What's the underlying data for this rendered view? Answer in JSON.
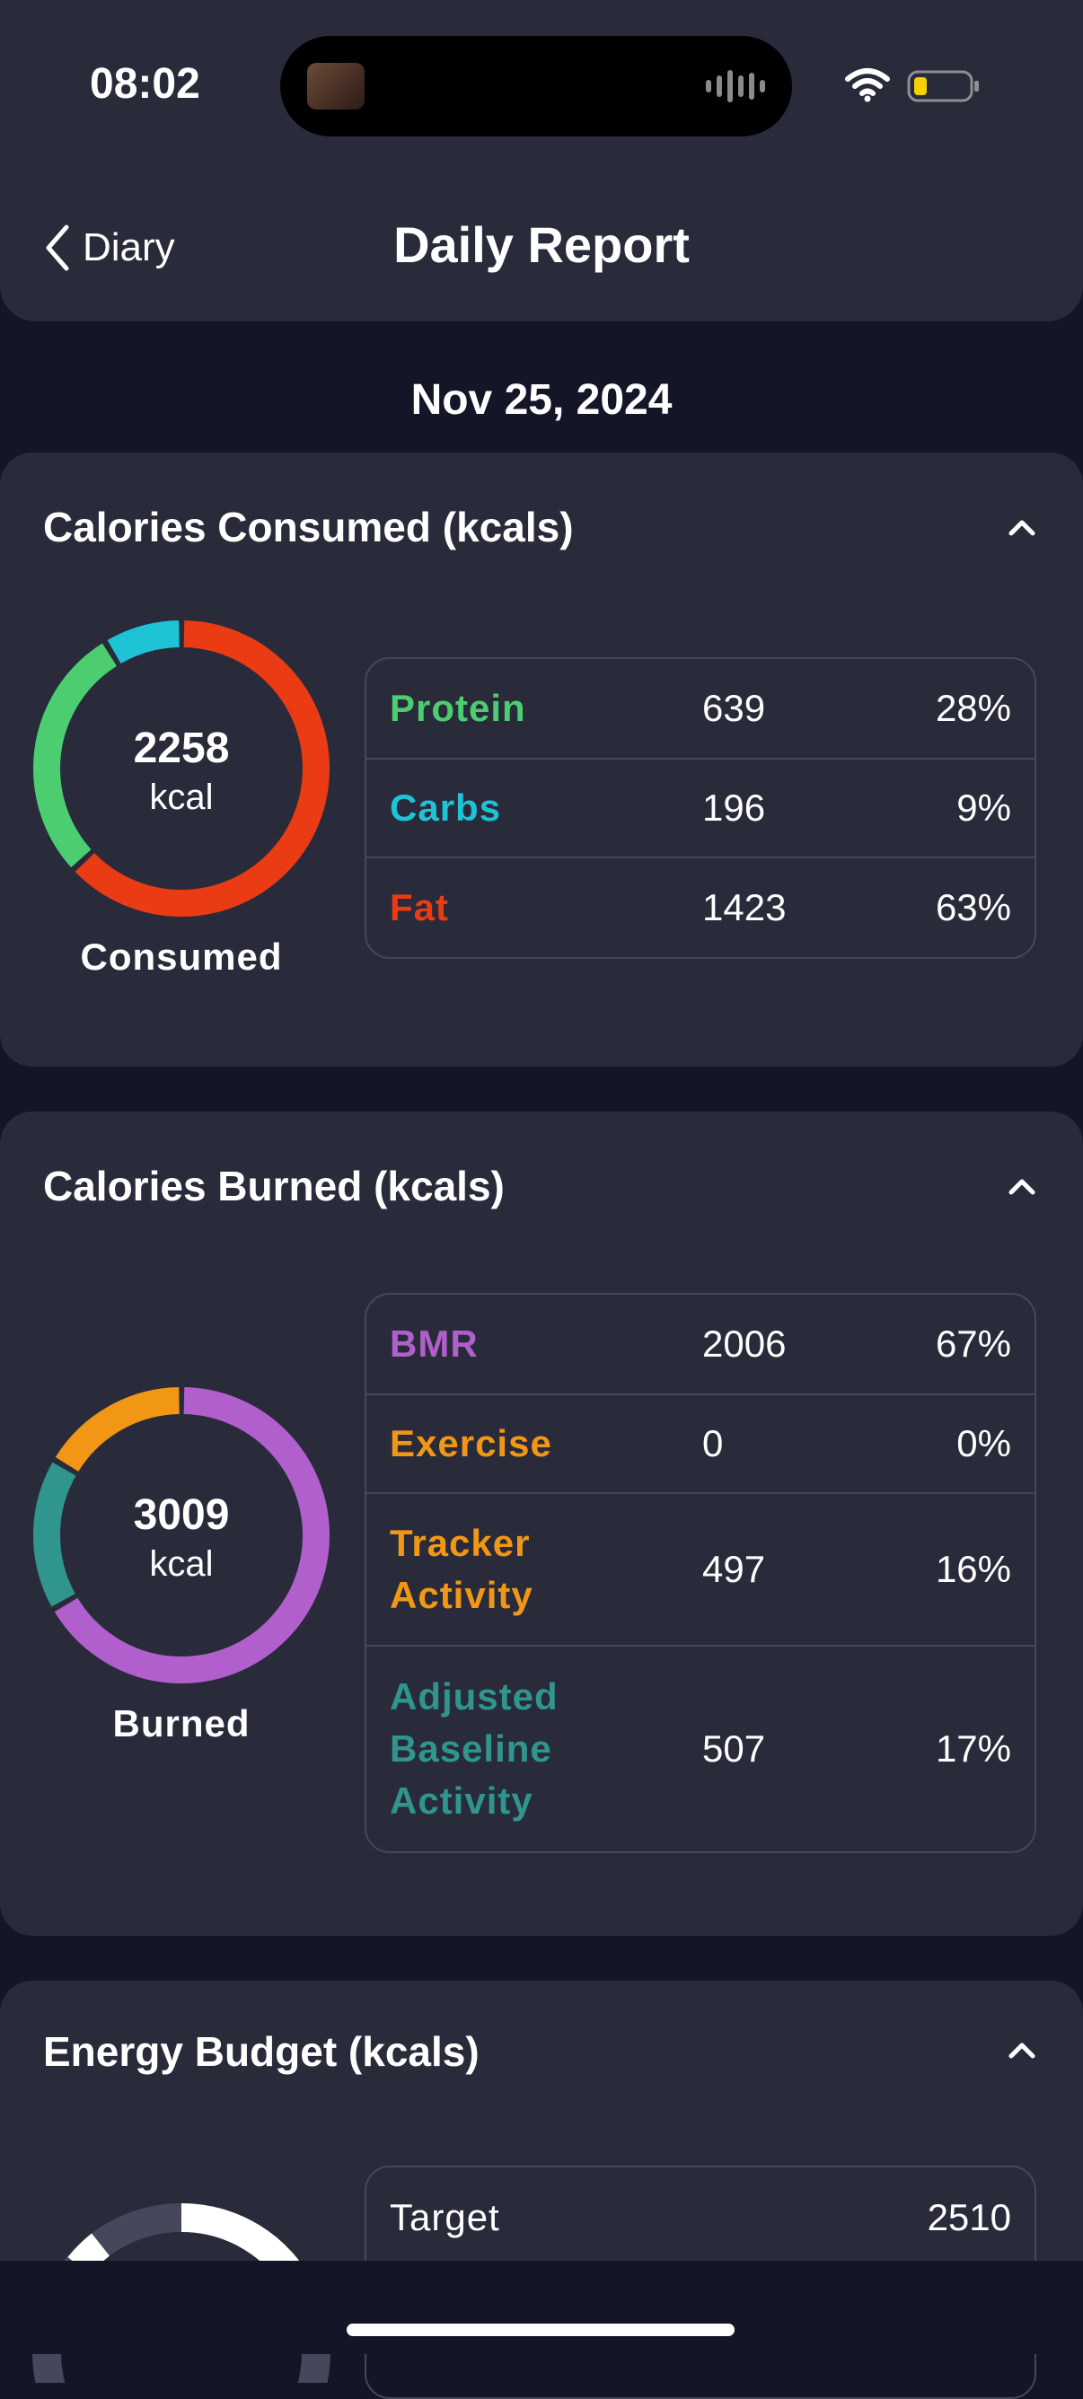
{
  "status_bar": {
    "time": "08:02"
  },
  "header": {
    "back_label": "Diary",
    "title": "Daily Report"
  },
  "date": "Nov 25, 2024",
  "colors": {
    "background": "#141628",
    "card": "#292b3b",
    "protein": "#4ccd6f",
    "carbs": "#1ec3d6",
    "fat": "#ea3b14",
    "bmr": "#b05fcc",
    "exercise": "#f29715",
    "tracker_activity": "#f29715",
    "adjusted_baseline": "#2f958d"
  },
  "consumed": {
    "title": "Calories Consumed (kcals)",
    "total": "2258",
    "unit": "kcal",
    "caption": "Consumed",
    "rows": [
      {
        "label": "Protein",
        "value": "639",
        "percent": "28%"
      },
      {
        "label": "Carbs",
        "value": "196",
        "percent": "9%"
      },
      {
        "label": "Fat",
        "value": "1423",
        "percent": "63%"
      }
    ]
  },
  "burned": {
    "title": "Calories Burned (kcals)",
    "total": "3009",
    "unit": "kcal",
    "caption": "Burned",
    "rows": [
      {
        "label": "BMR",
        "value": "2006",
        "percent": "67%"
      },
      {
        "label": "Exercise",
        "value": "0",
        "percent": "0%"
      },
      {
        "label": "Tracker Activity",
        "label_lines": [
          "Tracker",
          "Activity"
        ],
        "value": "497",
        "percent": "16%"
      },
      {
        "label": "Adjusted Baseline Activity",
        "label_lines": [
          "Adjusted",
          "Baseline",
          "Activity"
        ],
        "value": "507",
        "percent": "17%"
      }
    ]
  },
  "budget": {
    "title": "Energy Budget (kcals)",
    "rows": [
      {
        "label": "Target",
        "value": "2510"
      }
    ]
  },
  "chart_data": [
    {
      "type": "pie",
      "title": "Calories Consumed (kcals)",
      "categories": [
        "Protein",
        "Carbs",
        "Fat"
      ],
      "values": [
        639,
        196,
        1423
      ],
      "percentages": [
        28,
        9,
        63
      ],
      "total": 2258
    },
    {
      "type": "pie",
      "title": "Calories Burned (kcals)",
      "categories": [
        "BMR",
        "Exercise",
        "Tracker Activity",
        "Adjusted Baseline Activity"
      ],
      "values": [
        2006,
        0,
        497,
        507
      ],
      "percentages": [
        67,
        0,
        16,
        17
      ],
      "total": 3009
    }
  ]
}
